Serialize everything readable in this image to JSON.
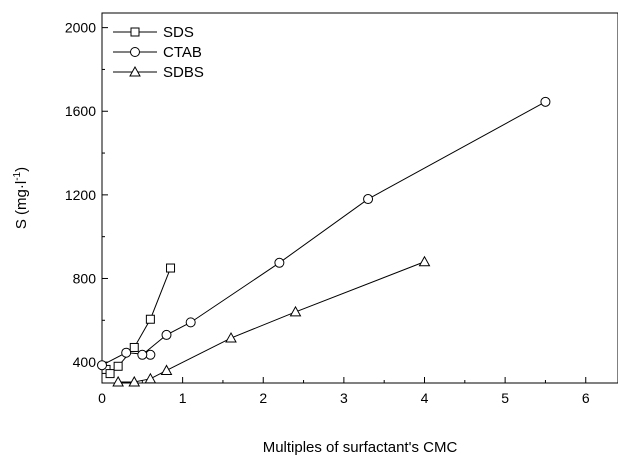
{
  "chart_data": {
    "type": "line",
    "title": "",
    "xlabel": "Multiples of surfactant's CMC",
    "ylabel": "S (mg·l",
    "ylabel_superscript": "-1",
    "ylabel_close": ")",
    "xlim": [
      0,
      6.4
    ],
    "ylim": [
      300,
      2070
    ],
    "x_ticks": [
      0,
      1,
      2,
      3,
      4,
      5,
      6
    ],
    "y_ticks": [
      400,
      800,
      1200,
      1600,
      2000
    ],
    "y_minor_ticks": [
      600,
      1000,
      1400,
      1800
    ],
    "grid": false,
    "legend_position": "top-left",
    "series": [
      {
        "name": "SDS",
        "marker": "square",
        "x": [
          0.05,
          0.1,
          0.2,
          0.4,
          0.6,
          0.85
        ],
        "y": [
          365,
          345,
          380,
          470,
          605,
          850
        ]
      },
      {
        "name": "CTAB",
        "marker": "circle",
        "x": [
          0.0,
          0.3,
          0.6,
          0.5,
          0.8,
          1.1,
          2.2,
          3.3,
          5.5
        ],
        "y": [
          385,
          445,
          435,
          435,
          530,
          590,
          875,
          1180,
          1645
        ]
      },
      {
        "name": "SDBS",
        "marker": "triangle",
        "x": [
          0.2,
          0.4,
          0.6,
          0.8,
          1.6,
          2.4,
          4.0
        ],
        "y": [
          305,
          305,
          320,
          360,
          515,
          640,
          880
        ]
      }
    ]
  }
}
